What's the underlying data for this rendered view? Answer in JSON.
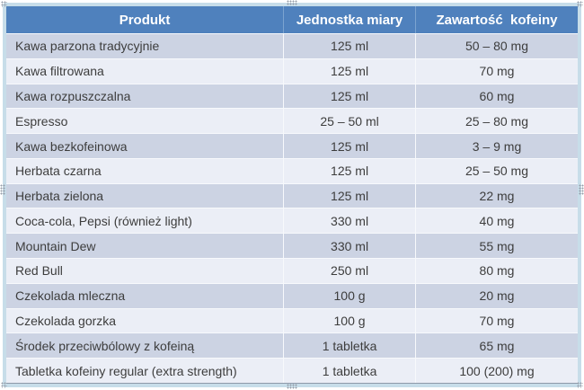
{
  "colors": {
    "header_bg": "#4f81bd",
    "header_text": "#ffffff",
    "row_shaded_bg": "#ccd3e3",
    "row_light_bg": "#ebeef6",
    "body_text": "#3d3d3d",
    "frame_border": "#c7dde9",
    "bottom_rule": "#8e99a9"
  },
  "table": {
    "columns": [
      "Produkt",
      "Jednostka miary",
      "Zawartość  kofeiny"
    ],
    "rows": [
      [
        "Kawa parzona tradycyjnie",
        "125 ml",
        "50 – 80 mg"
      ],
      [
        "Kawa filtrowana",
        "125 ml",
        "70 mg"
      ],
      [
        "Kawa rozpuszczalna",
        "125 ml",
        "60 mg"
      ],
      [
        "Espresso",
        "25 – 50 ml",
        "25 – 80 mg"
      ],
      [
        "Kawa bezkofeinowa",
        "125 ml",
        "3 – 9 mg"
      ],
      [
        "Herbata czarna",
        "125 ml",
        "25 – 50 mg"
      ],
      [
        "Herbata zielona",
        "125 ml",
        "22 mg"
      ],
      [
        "Coca-cola, Pepsi (również light)",
        "330 ml",
        "40 mg"
      ],
      [
        "Mountain Dew",
        "330 ml",
        "55 mg"
      ],
      [
        "Red Bull",
        "250 ml",
        "80 mg"
      ],
      [
        "Czekolada mleczna",
        "100 g",
        "20 mg"
      ],
      [
        "Czekolada gorzka",
        "100 g",
        "70 mg"
      ],
      [
        "Środek przeciwbólowy z kofeiną",
        "1 tabletka",
        "65 mg"
      ],
      [
        "Tabletka kofeiny regular (extra strength)",
        "1 tabletka",
        "100 (200) mg"
      ]
    ]
  }
}
